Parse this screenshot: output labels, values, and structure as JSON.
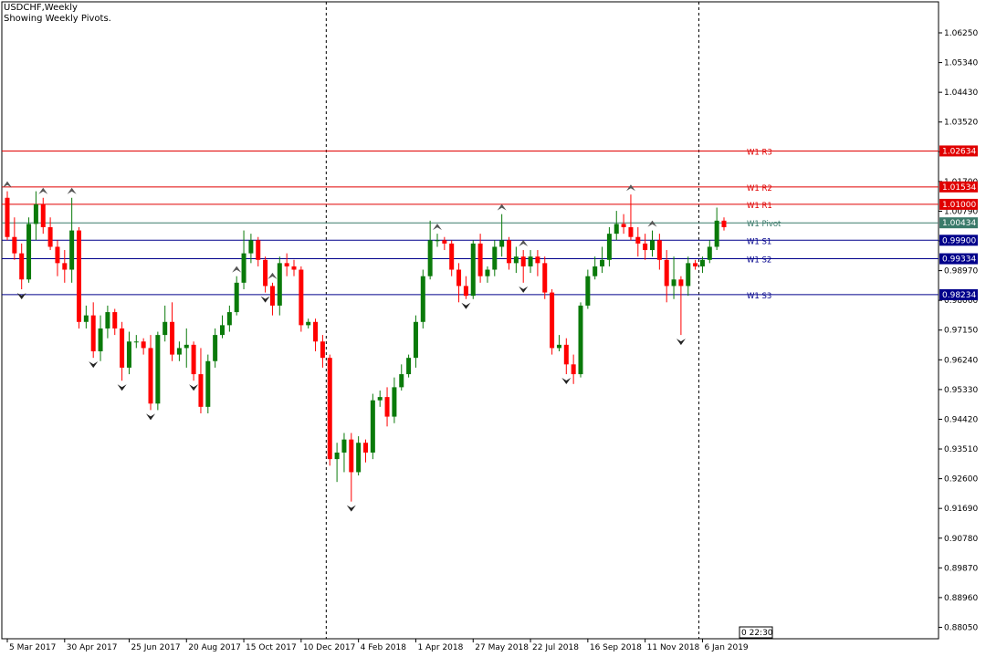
{
  "header": {
    "symbol_title": "USDCHF,Weekly",
    "indicator_caption": "Showing Weekly Pivots."
  },
  "colors": {
    "bull": "#0a7a0a",
    "bear": "#ff0000",
    "resistance": "#e00000",
    "support": "#00008b",
    "pivot": "#3a7a6a",
    "grid": "#000000"
  },
  "timer_label": "0 22:30",
  "chart_data": {
    "type": "candlestick",
    "symbol": "USDCHF",
    "timeframe": "Weekly",
    "ylim": [
      0.877,
      1.072
    ],
    "y_ticks": [
      "1.06250",
      "1.05340",
      "1.04430",
      "1.03520",
      "1.02610",
      "1.01700",
      "1.00790",
      "0.99880",
      "0.98970",
      "0.98060",
      "0.97150",
      "0.96240",
      "0.95330",
      "0.94420",
      "0.93510",
      "0.92600",
      "0.91690",
      "0.90780",
      "0.89870",
      "0.88960",
      "0.88050"
    ],
    "x_ticks": [
      {
        "index": 0,
        "label": "5 Mar 2017"
      },
      {
        "index": 8,
        "label": "30 Apr 2017"
      },
      {
        "index": 17,
        "label": "25 Jun 2017"
      },
      {
        "index": 25,
        "label": "20 Aug 2017"
      },
      {
        "index": 33,
        "label": "15 Oct 2017"
      },
      {
        "index": 41,
        "label": "10 Dec 2017"
      },
      {
        "index": 49,
        "label": "4 Feb 2018"
      },
      {
        "index": 57,
        "label": "1 Apr 2018"
      },
      {
        "index": 65,
        "label": "27 May 2018"
      },
      {
        "index": 73,
        "label": "22 Jul 2018"
      },
      {
        "index": 81,
        "label": "16 Sep 2018"
      },
      {
        "index": 89,
        "label": "11 Nov 2018"
      },
      {
        "index": 97,
        "label": "6 Jan 2019"
      }
    ],
    "period_separators": [
      44.5,
      96.5
    ],
    "pivot_levels": [
      {
        "name": "W1 R3",
        "value": 1.02634,
        "tag": "1.02634",
        "kind": "resistance"
      },
      {
        "name": "W1 R2",
        "value": 1.01534,
        "tag": "1.01534",
        "kind": "resistance"
      },
      {
        "name": "W1 R1",
        "value": 1.01,
        "tag": "1.01000",
        "kind": "resistance"
      },
      {
        "name": "W1 Pivot",
        "value": 1.00434,
        "tag": "1.00434",
        "kind": "pivot"
      },
      {
        "name": "W1 S1",
        "value": 0.999,
        "tag": "0.99900",
        "kind": "support"
      },
      {
        "name": "W1 S2",
        "value": 0.99334,
        "tag": "0.99334",
        "kind": "support"
      },
      {
        "name": "W1 S3",
        "value": 0.98234,
        "tag": "0.98234",
        "kind": "support"
      }
    ],
    "candles": [
      {
        "o": 1.012,
        "h": 1.014,
        "l": 0.999,
        "c": 1.0
      },
      {
        "o": 1.0,
        "h": 1.006,
        "l": 0.993,
        "c": 0.995
      },
      {
        "o": 0.995,
        "h": 0.998,
        "l": 0.984,
        "c": 0.987
      },
      {
        "o": 0.987,
        "h": 1.006,
        "l": 0.986,
        "c": 1.004
      },
      {
        "o": 1.004,
        "h": 1.014,
        "l": 0.999,
        "c": 1.01
      },
      {
        "o": 1.01,
        "h": 1.012,
        "l": 1.001,
        "c": 1.003
      },
      {
        "o": 1.003,
        "h": 1.006,
        "l": 0.996,
        "c": 0.997
      },
      {
        "o": 0.997,
        "h": 0.999,
        "l": 0.988,
        "c": 0.992
      },
      {
        "o": 0.992,
        "h": 0.996,
        "l": 0.986,
        "c": 0.99
      },
      {
        "o": 0.99,
        "h": 1.012,
        "l": 0.986,
        "c": 1.002
      },
      {
        "o": 1.002,
        "h": 1.003,
        "l": 0.972,
        "c": 0.974
      },
      {
        "o": 0.974,
        "h": 0.979,
        "l": 0.972,
        "c": 0.976
      },
      {
        "o": 0.976,
        "h": 0.98,
        "l": 0.963,
        "c": 0.965
      },
      {
        "o": 0.965,
        "h": 0.976,
        "l": 0.962,
        "c": 0.972
      },
      {
        "o": 0.972,
        "h": 0.979,
        "l": 0.969,
        "c": 0.977
      },
      {
        "o": 0.977,
        "h": 0.978,
        "l": 0.97,
        "c": 0.972
      },
      {
        "o": 0.972,
        "h": 0.974,
        "l": 0.956,
        "c": 0.96
      },
      {
        "o": 0.96,
        "h": 0.971,
        "l": 0.958,
        "c": 0.968
      },
      {
        "o": 0.968,
        "h": 0.97,
        "l": 0.966,
        "c": 0.968
      },
      {
        "o": 0.968,
        "h": 0.969,
        "l": 0.964,
        "c": 0.966
      },
      {
        "o": 0.966,
        "h": 0.97,
        "l": 0.947,
        "c": 0.949
      },
      {
        "o": 0.949,
        "h": 0.971,
        "l": 0.947,
        "c": 0.97
      },
      {
        "o": 0.97,
        "h": 0.979,
        "l": 0.968,
        "c": 0.974
      },
      {
        "o": 0.974,
        "h": 0.98,
        "l": 0.962,
        "c": 0.964
      },
      {
        "o": 0.964,
        "h": 0.968,
        "l": 0.962,
        "c": 0.966
      },
      {
        "o": 0.966,
        "h": 0.972,
        "l": 0.96,
        "c": 0.967
      },
      {
        "o": 0.967,
        "h": 0.968,
        "l": 0.956,
        "c": 0.958
      },
      {
        "o": 0.958,
        "h": 0.966,
        "l": 0.946,
        "c": 0.948
      },
      {
        "o": 0.948,
        "h": 0.964,
        "l": 0.946,
        "c": 0.962
      },
      {
        "o": 0.962,
        "h": 0.972,
        "l": 0.96,
        "c": 0.97
      },
      {
        "o": 0.97,
        "h": 0.976,
        "l": 0.969,
        "c": 0.973
      },
      {
        "o": 0.973,
        "h": 0.979,
        "l": 0.971,
        "c": 0.977
      },
      {
        "o": 0.977,
        "h": 0.988,
        "l": 0.976,
        "c": 0.986
      },
      {
        "o": 0.986,
        "h": 1.002,
        "l": 0.984,
        "c": 0.995
      },
      {
        "o": 0.995,
        "h": 1.001,
        "l": 0.992,
        "c": 0.999
      },
      {
        "o": 0.999,
        "h": 1.0,
        "l": 0.991,
        "c": 0.993
      },
      {
        "o": 0.993,
        "h": 0.994,
        "l": 0.983,
        "c": 0.985
      },
      {
        "o": 0.985,
        "h": 0.986,
        "l": 0.976,
        "c": 0.979
      },
      {
        "o": 0.979,
        "h": 0.994,
        "l": 0.976,
        "c": 0.992
      },
      {
        "o": 0.992,
        "h": 0.995,
        "l": 0.988,
        "c": 0.991
      },
      {
        "o": 0.991,
        "h": 0.993,
        "l": 0.988,
        "c": 0.99
      },
      {
        "o": 0.99,
        "h": 0.991,
        "l": 0.971,
        "c": 0.973
      },
      {
        "o": 0.973,
        "h": 0.975,
        "l": 0.972,
        "c": 0.974
      },
      {
        "o": 0.974,
        "h": 0.975,
        "l": 0.965,
        "c": 0.968
      },
      {
        "o": 0.968,
        "h": 0.97,
        "l": 0.96,
        "c": 0.963
      },
      {
        "o": 0.963,
        "h": 0.964,
        "l": 0.93,
        "c": 0.932
      },
      {
        "o": 0.932,
        "h": 0.937,
        "l": 0.925,
        "c": 0.934
      },
      {
        "o": 0.934,
        "h": 0.94,
        "l": 0.928,
        "c": 0.938
      },
      {
        "o": 0.938,
        "h": 0.94,
        "l": 0.919,
        "c": 0.928
      },
      {
        "o": 0.928,
        "h": 0.939,
        "l": 0.927,
        "c": 0.937
      },
      {
        "o": 0.937,
        "h": 0.938,
        "l": 0.931,
        "c": 0.934
      },
      {
        "o": 0.934,
        "h": 0.952,
        "l": 0.932,
        "c": 0.95
      },
      {
        "o": 0.95,
        "h": 0.953,
        "l": 0.948,
        "c": 0.951
      },
      {
        "o": 0.951,
        "h": 0.954,
        "l": 0.942,
        "c": 0.945
      },
      {
        "o": 0.945,
        "h": 0.957,
        "l": 0.943,
        "c": 0.954
      },
      {
        "o": 0.954,
        "h": 0.961,
        "l": 0.953,
        "c": 0.958
      },
      {
        "o": 0.958,
        "h": 0.964,
        "l": 0.957,
        "c": 0.963
      },
      {
        "o": 0.963,
        "h": 0.976,
        "l": 0.96,
        "c": 0.974
      },
      {
        "o": 0.974,
        "h": 0.99,
        "l": 0.972,
        "c": 0.988
      },
      {
        "o": 0.988,
        "h": 1.005,
        "l": 0.987,
        "c": 0.999
      },
      {
        "o": 0.999,
        "h": 1.001,
        "l": 0.997,
        "c": 0.999
      },
      {
        "o": 0.999,
        "h": 1.0,
        "l": 0.996,
        "c": 0.998
      },
      {
        "o": 0.998,
        "h": 0.999,
        "l": 0.988,
        "c": 0.99
      },
      {
        "o": 0.99,
        "h": 0.992,
        "l": 0.98,
        "c": 0.985
      },
      {
        "o": 0.985,
        "h": 0.988,
        "l": 0.981,
        "c": 0.982
      },
      {
        "o": 0.982,
        "h": 0.999,
        "l": 0.981,
        "c": 0.998
      },
      {
        "o": 0.998,
        "h": 1.001,
        "l": 0.986,
        "c": 0.988
      },
      {
        "o": 0.988,
        "h": 0.991,
        "l": 0.986,
        "c": 0.99
      },
      {
        "o": 0.99,
        "h": 0.999,
        "l": 0.988,
        "c": 0.997
      },
      {
        "o": 0.997,
        "h": 1.007,
        "l": 0.994,
        "c": 0.999
      },
      {
        "o": 0.999,
        "h": 1.0,
        "l": 0.99,
        "c": 0.992
      },
      {
        "o": 0.992,
        "h": 0.997,
        "l": 0.989,
        "c": 0.994
      },
      {
        "o": 0.994,
        "h": 0.996,
        "l": 0.986,
        "c": 0.991
      },
      {
        "o": 0.991,
        "h": 0.996,
        "l": 0.989,
        "c": 0.994
      },
      {
        "o": 0.994,
        "h": 0.996,
        "l": 0.988,
        "c": 0.992
      },
      {
        "o": 0.992,
        "h": 0.994,
        "l": 0.981,
        "c": 0.983
      },
      {
        "o": 0.983,
        "h": 0.984,
        "l": 0.964,
        "c": 0.966
      },
      {
        "o": 0.966,
        "h": 0.97,
        "l": 0.965,
        "c": 0.967
      },
      {
        "o": 0.967,
        "h": 0.969,
        "l": 0.958,
        "c": 0.961
      },
      {
        "o": 0.961,
        "h": 0.964,
        "l": 0.955,
        "c": 0.958
      },
      {
        "o": 0.958,
        "h": 0.98,
        "l": 0.957,
        "c": 0.979
      },
      {
        "o": 0.979,
        "h": 0.99,
        "l": 0.978,
        "c": 0.988
      },
      {
        "o": 0.988,
        "h": 0.994,
        "l": 0.987,
        "c": 0.991
      },
      {
        "o": 0.991,
        "h": 0.997,
        "l": 0.989,
        "c": 0.993
      },
      {
        "o": 0.993,
        "h": 1.003,
        "l": 0.991,
        "c": 1.001
      },
      {
        "o": 1.001,
        "h": 1.008,
        "l": 0.999,
        "c": 1.004
      },
      {
        "o": 1.004,
        "h": 1.007,
        "l": 1.001,
        "c": 1.003
      },
      {
        "o": 1.003,
        "h": 1.013,
        "l": 0.999,
        "c": 1.0
      },
      {
        "o": 1.0,
        "h": 1.003,
        "l": 0.994,
        "c": 0.998
      },
      {
        "o": 0.998,
        "h": 1.001,
        "l": 0.993,
        "c": 0.996
      },
      {
        "o": 0.996,
        "h": 1.002,
        "l": 0.994,
        "c": 0.999
      },
      {
        "o": 0.999,
        "h": 1.001,
        "l": 0.99,
        "c": 0.993
      },
      {
        "o": 0.993,
        "h": 0.996,
        "l": 0.98,
        "c": 0.985
      },
      {
        "o": 0.985,
        "h": 0.994,
        "l": 0.981,
        "c": 0.987
      },
      {
        "o": 0.987,
        "h": 0.988,
        "l": 0.97,
        "c": 0.985
      },
      {
        "o": 0.985,
        "h": 0.994,
        "l": 0.982,
        "c": 0.992
      },
      {
        "o": 0.992,
        "h": 0.993,
        "l": 0.99,
        "c": 0.991
      },
      {
        "o": 0.991,
        "h": 0.994,
        "l": 0.989,
        "c": 0.993
      },
      {
        "o": 0.993,
        "h": 0.999,
        "l": 0.992,
        "c": 0.997
      },
      {
        "o": 0.997,
        "h": 1.009,
        "l": 0.996,
        "c": 1.005
      },
      {
        "o": 1.005,
        "h": 1.006,
        "l": 1.002,
        "c": 1.003
      }
    ],
    "fractals_up": [
      0,
      5,
      9,
      32,
      37,
      60,
      69,
      72,
      87,
      90
    ],
    "fractals_down": [
      2,
      12,
      16,
      20,
      26,
      36,
      48,
      64,
      72,
      78,
      94
    ],
    "current_price": 1.00434
  }
}
